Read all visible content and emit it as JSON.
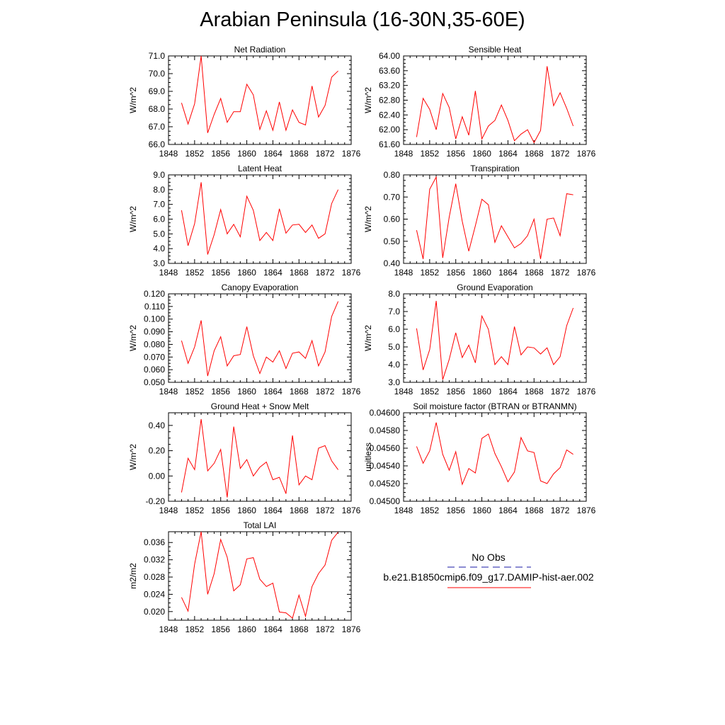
{
  "title": "Arabian Peninsula (16-30N,35-60E)",
  "x_tick_labels": [
    "1848",
    "1852",
    "1856",
    "1860",
    "1864",
    "1868",
    "1872",
    "1876"
  ],
  "series_color": "#ff0000",
  "obs_color": "#1a1aa6",
  "legend": {
    "obs_label": "No Obs",
    "model_label": "b.e21.B1850cmip6.f09_g17.DAMIP-hist-aer.002"
  },
  "chart_data": [
    {
      "type": "line",
      "title": "Net Radiation",
      "ylabel": "W/m^2",
      "xlim": [
        1848,
        1876
      ],
      "ylim": [
        66.0,
        71.0
      ],
      "yticks": [
        "66.0",
        "67.0",
        "68.0",
        "69.0",
        "70.0",
        "71.0"
      ],
      "x": [
        1850,
        1851,
        1852,
        1853,
        1854,
        1855,
        1856,
        1857,
        1858,
        1859,
        1860,
        1861,
        1862,
        1863,
        1864,
        1865,
        1866,
        1867,
        1868,
        1869,
        1870,
        1871,
        1872,
        1873,
        1874
      ],
      "values": [
        68.35,
        67.15,
        68.3,
        71.0,
        66.65,
        67.7,
        68.6,
        67.25,
        67.85,
        67.85,
        69.4,
        68.8,
        66.85,
        67.9,
        66.8,
        68.4,
        66.8,
        67.95,
        67.25,
        67.1,
        69.3,
        67.55,
        68.2,
        69.8,
        70.15
      ]
    },
    {
      "type": "line",
      "title": "Sensible Heat",
      "ylabel": "W/m^2",
      "xlim": [
        1848,
        1876
      ],
      "ylim": [
        61.6,
        64.0
      ],
      "yticks": [
        "61.60",
        "62.00",
        "62.40",
        "62.80",
        "63.20",
        "63.60",
        "64.00"
      ],
      "x": [
        1850,
        1851,
        1852,
        1853,
        1854,
        1855,
        1856,
        1857,
        1858,
        1859,
        1860,
        1861,
        1862,
        1863,
        1864,
        1865,
        1866,
        1867,
        1868,
        1869,
        1870,
        1871,
        1872,
        1873,
        1874
      ],
      "values": [
        61.8,
        62.85,
        62.55,
        62.0,
        62.98,
        62.6,
        61.75,
        62.35,
        61.85,
        63.05,
        61.75,
        62.1,
        62.25,
        62.67,
        62.25,
        61.7,
        61.88,
        62.0,
        61.65,
        61.98,
        63.72,
        62.65,
        63.0,
        62.58,
        62.1
      ]
    },
    {
      "type": "line",
      "title": "Latent Heat",
      "ylabel": "W/m^2",
      "xlim": [
        1848,
        1876
      ],
      "ylim": [
        3.0,
        9.0
      ],
      "yticks": [
        "3.0",
        "4.0",
        "5.0",
        "6.0",
        "7.0",
        "8.0",
        "9.0"
      ],
      "x": [
        1850,
        1851,
        1852,
        1853,
        1854,
        1855,
        1856,
        1857,
        1858,
        1859,
        1860,
        1861,
        1862,
        1863,
        1864,
        1865,
        1866,
        1867,
        1868,
        1869,
        1870,
        1871,
        1872,
        1873,
        1874
      ],
      "values": [
        6.6,
        4.2,
        5.7,
        8.5,
        3.6,
        4.95,
        6.65,
        5.0,
        5.65,
        4.8,
        7.55,
        6.6,
        4.55,
        5.1,
        4.55,
        6.7,
        5.05,
        5.6,
        5.65,
        5.1,
        5.6,
        4.7,
        5.0,
        7.05,
        8.0
      ]
    },
    {
      "type": "line",
      "title": "Transpiration",
      "ylabel": "W/m^2",
      "xlim": [
        1848,
        1876
      ],
      "ylim": [
        0.4,
        0.8
      ],
      "yticks": [
        "0.40",
        "0.50",
        "0.60",
        "0.70",
        "0.80"
      ],
      "x": [
        1850,
        1851,
        1852,
        1853,
        1854,
        1855,
        1856,
        1857,
        1858,
        1859,
        1860,
        1861,
        1862,
        1863,
        1864,
        1865,
        1866,
        1867,
        1868,
        1869,
        1870,
        1871,
        1872,
        1873,
        1874
      ],
      "values": [
        0.55,
        0.42,
        0.735,
        0.79,
        0.425,
        0.61,
        0.76,
        0.59,
        0.455,
        0.57,
        0.69,
        0.665,
        0.495,
        0.57,
        0.52,
        0.47,
        0.49,
        0.525,
        0.6,
        0.42,
        0.6,
        0.605,
        0.525,
        0.715,
        0.71
      ]
    },
    {
      "type": "line",
      "title": "Canopy Evaporation",
      "ylabel": "W/m^2",
      "xlim": [
        1848,
        1876
      ],
      "ylim": [
        0.05,
        0.12
      ],
      "yticks": [
        "0.050",
        "0.060",
        "0.070",
        "0.080",
        "0.090",
        "0.100",
        "0.110",
        "0.120"
      ],
      "x": [
        1850,
        1851,
        1852,
        1853,
        1854,
        1855,
        1856,
        1857,
        1858,
        1859,
        1860,
        1861,
        1862,
        1863,
        1864,
        1865,
        1866,
        1867,
        1868,
        1869,
        1870,
        1871,
        1872,
        1873,
        1874
      ],
      "values": [
        0.083,
        0.065,
        0.078,
        0.099,
        0.055,
        0.075,
        0.086,
        0.063,
        0.071,
        0.072,
        0.094,
        0.071,
        0.057,
        0.07,
        0.066,
        0.075,
        0.061,
        0.073,
        0.074,
        0.069,
        0.083,
        0.063,
        0.074,
        0.102,
        0.114
      ]
    },
    {
      "type": "line",
      "title": "Ground Evaporation",
      "ylabel": "W/m^2",
      "xlim": [
        1848,
        1876
      ],
      "ylim": [
        3.0,
        8.0
      ],
      "yticks": [
        "3.0",
        "4.0",
        "5.0",
        "6.0",
        "7.0",
        "8.0"
      ],
      "x": [
        1850,
        1851,
        1852,
        1853,
        1854,
        1855,
        1856,
        1857,
        1858,
        1859,
        1860,
        1861,
        1862,
        1863,
        1864,
        1865,
        1866,
        1867,
        1868,
        1869,
        1870,
        1871,
        1872,
        1873,
        1874
      ],
      "values": [
        6.05,
        3.7,
        4.85,
        7.6,
        3.15,
        4.3,
        5.8,
        4.4,
        5.1,
        4.1,
        6.75,
        6.0,
        4.0,
        4.45,
        4.0,
        6.15,
        4.55,
        5.0,
        4.95,
        4.6,
        4.95,
        4.0,
        4.45,
        6.2,
        7.2
      ]
    },
    {
      "type": "line",
      "title": "Ground Heat + Snow Melt",
      "ylabel": "W/m^2",
      "xlim": [
        1848,
        1876
      ],
      "ylim": [
        -0.2,
        0.5
      ],
      "yticks": [
        "-0.20",
        "0.00",
        "0.20",
        "0.40"
      ],
      "ytick_values": [
        -0.2,
        0.0,
        0.2,
        0.4
      ],
      "x": [
        1850,
        1851,
        1852,
        1853,
        1854,
        1855,
        1856,
        1857,
        1858,
        1859,
        1860,
        1861,
        1862,
        1863,
        1864,
        1865,
        1866,
        1867,
        1868,
        1869,
        1870,
        1871,
        1872,
        1873,
        1874
      ],
      "values": [
        -0.13,
        0.14,
        0.05,
        0.45,
        0.04,
        0.1,
        0.21,
        -0.17,
        0.39,
        0.06,
        0.13,
        0.0,
        0.07,
        0.11,
        -0.03,
        -0.01,
        -0.14,
        0.32,
        -0.07,
        0.0,
        -0.03,
        0.22,
        0.24,
        0.12,
        0.05
      ]
    },
    {
      "type": "line",
      "title": "Soil moisture factor (BTRAN or BTRANMN)",
      "ylabel": "unitless",
      "xlim": [
        1848,
        1876
      ],
      "ylim": [
        0.045,
        0.046
      ],
      "yticks": [
        "0.04500",
        "0.04520",
        "0.04540",
        "0.04560",
        "0.04580",
        "0.04600"
      ],
      "x": [
        1850,
        1851,
        1852,
        1853,
        1854,
        1855,
        1856,
        1857,
        1858,
        1859,
        1860,
        1861,
        1862,
        1863,
        1864,
        1865,
        1866,
        1867,
        1868,
        1869,
        1870,
        1871,
        1872,
        1873,
        1874
      ],
      "values": [
        0.04562,
        0.04543,
        0.04557,
        0.04589,
        0.04553,
        0.04535,
        0.04556,
        0.04519,
        0.04537,
        0.04532,
        0.04571,
        0.04576,
        0.04554,
        0.04539,
        0.04522,
        0.04533,
        0.04572,
        0.04557,
        0.04555,
        0.04523,
        0.0452,
        0.04531,
        0.04538,
        0.04558,
        0.04553
      ]
    },
    {
      "type": "line",
      "title": "Total LAI",
      "ylabel": "m2/m2",
      "xlim": [
        1848,
        1876
      ],
      "ylim": [
        0.018,
        0.0385
      ],
      "yticks": [
        "0.020",
        "0.024",
        "0.028",
        "0.032",
        "0.036"
      ],
      "ytick_values": [
        0.02,
        0.024,
        0.028,
        0.032,
        0.036
      ],
      "x": [
        1850,
        1851,
        1852,
        1853,
        1854,
        1855,
        1856,
        1857,
        1858,
        1859,
        1860,
        1861,
        1862,
        1863,
        1864,
        1865,
        1866,
        1867,
        1868,
        1869,
        1870,
        1871,
        1872,
        1873,
        1874
      ],
      "values": [
        0.0233,
        0.0201,
        0.031,
        0.0385,
        0.024,
        0.0288,
        0.0367,
        0.0326,
        0.0248,
        0.0262,
        0.0322,
        0.0325,
        0.0275,
        0.0258,
        0.0266,
        0.0199,
        0.0197,
        0.0185,
        0.0238,
        0.0189,
        0.0258,
        0.0288,
        0.0308,
        0.0365,
        0.0384
      ]
    }
  ]
}
